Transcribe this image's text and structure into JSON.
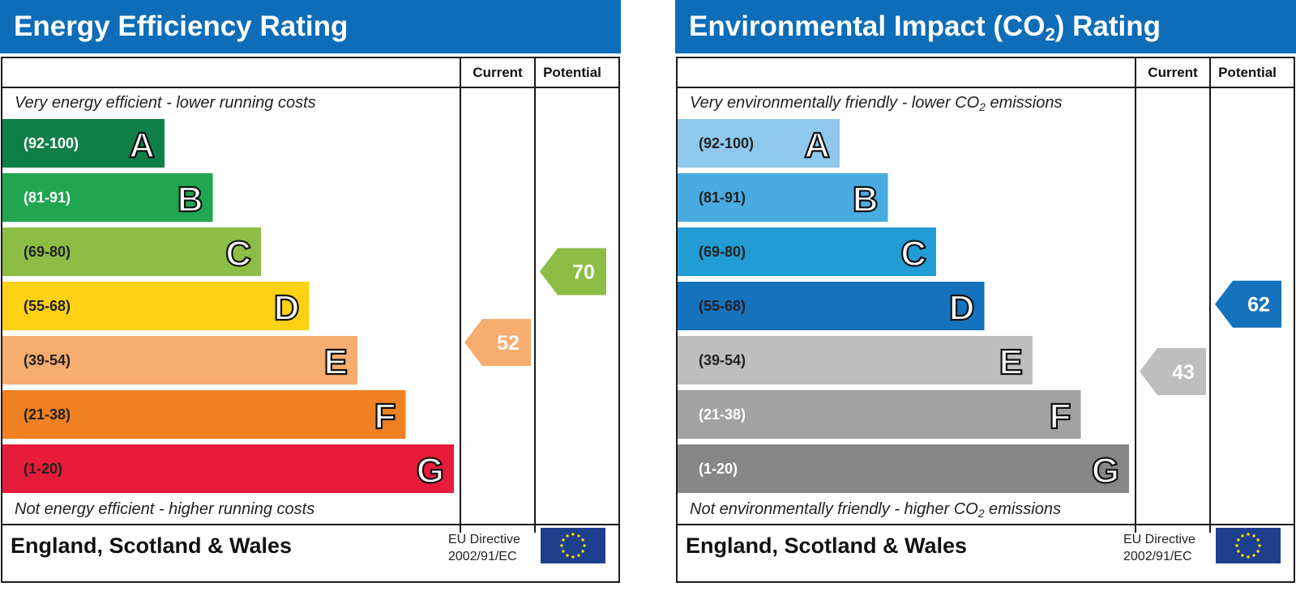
{
  "charts": [
    {
      "title": "Energy Efficiency Rating",
      "headers": {
        "current": "Current",
        "potential": "Potential"
      },
      "caption_top": "Very energy efficient - lower running costs",
      "caption_bottom": "Not energy efficient - higher running costs",
      "footer": {
        "region": "England, Scotland & Wales",
        "directive_line1": "EU Directive",
        "directive_line2": "2002/91/EC"
      },
      "chart_data": {
        "type": "bar",
        "categories": [
          "A",
          "B",
          "C",
          "D",
          "E",
          "F",
          "G"
        ],
        "ranges": [
          "(92-100)",
          "(81-91)",
          "(69-80)",
          "(55-68)",
          "(39-54)",
          "(21-38)",
          "(1-20)"
        ],
        "colors": [
          "#0f7f48",
          "#20a651",
          "#8cbd45",
          "#fdd114",
          "#f6ad6f",
          "#ef8023",
          "#e61c3a"
        ],
        "range_text_colors": [
          "#ffffff",
          "#ffffff",
          "#222222",
          "#222222",
          "#222222",
          "#222222",
          "#222222"
        ],
        "current": {
          "value": 52,
          "band": "E",
          "color": "#f6ad6f"
        },
        "potential": {
          "value": 70,
          "band": "C",
          "color": "#8cbd45"
        }
      }
    },
    {
      "title": "Environmental Impact (CO",
      "title_sub": "2",
      "title_suffix": ") Rating",
      "headers": {
        "current": "Current",
        "potential": "Potential"
      },
      "caption_top": "Very environmentally friendly - lower CO",
      "caption_top_sub": "2",
      "caption_top_suffix": " emissions",
      "caption_bottom": "Not environmentally friendly - higher CO",
      "caption_bottom_sub": "2",
      "caption_bottom_suffix": " emissions",
      "footer": {
        "region": "England, Scotland & Wales",
        "directive_line1": "EU Directive",
        "directive_line2": "2002/91/EC"
      },
      "chart_data": {
        "type": "bar",
        "categories": [
          "A",
          "B",
          "C",
          "D",
          "E",
          "F",
          "G"
        ],
        "ranges": [
          "(92-100)",
          "(81-91)",
          "(69-80)",
          "(55-68)",
          "(39-54)",
          "(21-38)",
          "(1-20)"
        ],
        "colors": [
          "#8fc8ec",
          "#4aabe0",
          "#239cd3",
          "#1572bd",
          "#bfbebe",
          "#a2a2a2",
          "#878787"
        ],
        "range_text_colors": [
          "#222222",
          "#222222",
          "#222222",
          "#222222",
          "#222222",
          "#ffffff",
          "#ffffff"
        ],
        "current": {
          "value": 43,
          "band": "E",
          "color": "#bfbebe"
        },
        "potential": {
          "value": 62,
          "band": "D",
          "color": "#1572bd"
        }
      }
    }
  ]
}
